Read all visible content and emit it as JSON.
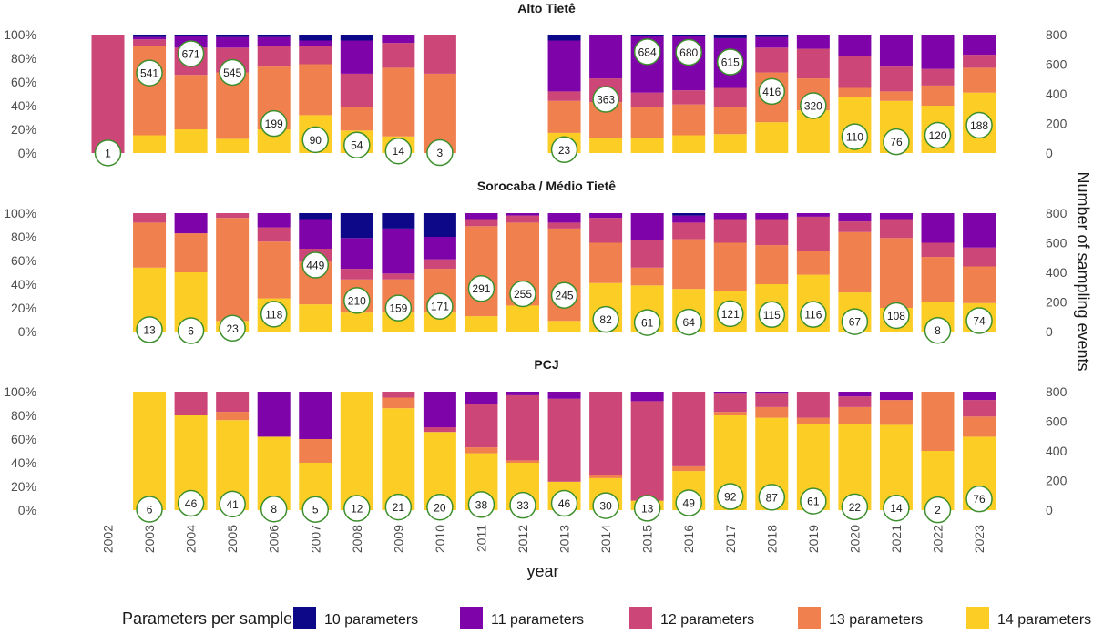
{
  "chart_data": {
    "type": "bar",
    "stacked": "percent",
    "x_label": "year",
    "y2_label": "Number of sampling events",
    "years": [
      "2002",
      "2003",
      "2004",
      "2005",
      "2006",
      "2007",
      "2008",
      "2009",
      "2010",
      "2011",
      "2012",
      "2013",
      "2014",
      "2015",
      "2016",
      "2017",
      "2018",
      "2019",
      "2020",
      "2021",
      "2022",
      "2023"
    ],
    "y_ticks": [
      "0%",
      "20%",
      "40%",
      "60%",
      "80%",
      "100%"
    ],
    "y2_ticks": [
      "0",
      "200",
      "400",
      "600",
      "800"
    ],
    "y2_range": [
      0,
      800
    ],
    "legend": {
      "title": "Parameters per sample",
      "placement": "bottom",
      "items": [
        {
          "key": "p10",
          "label": "10 parameters",
          "color": "#0d0887"
        },
        {
          "key": "p11",
          "label": "11 parameters",
          "color": "#7e03a8"
        },
        {
          "key": "p12",
          "label": "12 parameters",
          "color": "#cc4778"
        },
        {
          "key": "p13",
          "label": "13 parameters",
          "color": "#f0804e"
        },
        {
          "key": "p14",
          "label": "14 parameters",
          "color": "#fccd25"
        }
      ]
    },
    "count_circle_color": "#3d8f2d",
    "panels": [
      {
        "title": "Alto Tietê",
        "bars": [
          {
            "year": "2002",
            "count": 1,
            "p14": 0,
            "p13": 0,
            "p12": 100,
            "p11": 0,
            "p10": 0
          },
          {
            "year": "2003",
            "count": 541,
            "p14": 15,
            "p13": 75,
            "p12": 6,
            "p11": 2,
            "p10": 2
          },
          {
            "year": "2004",
            "count": 671,
            "p14": 20,
            "p13": 46,
            "p12": 23,
            "p11": 10,
            "p10": 1
          },
          {
            "year": "2005",
            "count": 545,
            "p14": 12,
            "p13": 56,
            "p12": 21,
            "p11": 9,
            "p10": 2
          },
          {
            "year": "2006",
            "count": 199,
            "p14": 20,
            "p13": 53,
            "p12": 17,
            "p11": 8,
            "p10": 2
          },
          {
            "year": "2007",
            "count": 90,
            "p14": 32,
            "p13": 43,
            "p12": 15,
            "p11": 5,
            "p10": 5
          },
          {
            "year": "2008",
            "count": 54,
            "p14": 19,
            "p13": 20,
            "p12": 28,
            "p11": 28,
            "p10": 5
          },
          {
            "year": "2009",
            "count": 14,
            "p14": 14,
            "p13": 58,
            "p12": 21,
            "p11": 7,
            "p10": 0
          },
          {
            "year": "2010",
            "count": 3,
            "p14": 0,
            "p13": 67,
            "p12": 33,
            "p11": 0,
            "p10": 0
          },
          {
            "year": "2013",
            "count": 23,
            "p14": 17,
            "p13": 27,
            "p12": 8,
            "p11": 43,
            "p10": 5
          },
          {
            "year": "2014",
            "count": 363,
            "p14": 13,
            "p13": 30,
            "p12": 20,
            "p11": 37,
            "p10": 0
          },
          {
            "year": "2015",
            "count": 684,
            "p14": 13,
            "p13": 26,
            "p12": 12,
            "p11": 48,
            "p10": 1
          },
          {
            "year": "2016",
            "count": 680,
            "p14": 15,
            "p13": 26,
            "p12": 12,
            "p11": 46,
            "p10": 1
          },
          {
            "year": "2017",
            "count": 615,
            "p14": 16,
            "p13": 23,
            "p12": 16,
            "p11": 42,
            "p10": 3
          },
          {
            "year": "2018",
            "count": 416,
            "p14": 26,
            "p13": 42,
            "p12": 21,
            "p11": 9,
            "p10": 2
          },
          {
            "year": "2019",
            "count": 320,
            "p14": 36,
            "p13": 27,
            "p12": 25,
            "p11": 12,
            "p10": 0
          },
          {
            "year": "2020",
            "count": 110,
            "p14": 47,
            "p13": 8,
            "p12": 27,
            "p11": 18,
            "p10": 0
          },
          {
            "year": "2021",
            "count": 76,
            "p14": 44,
            "p13": 8,
            "p12": 21,
            "p11": 27,
            "p10": 0
          },
          {
            "year": "2022",
            "count": 120,
            "p14": 40,
            "p13": 17,
            "p12": 14,
            "p11": 29,
            "p10": 0
          },
          {
            "year": "2023",
            "count": 188,
            "p14": 51,
            "p13": 21,
            "p12": 11,
            "p11": 17,
            "p10": 0
          }
        ]
      },
      {
        "title": "Sorocaba / Médio Tietê",
        "bars": [
          {
            "year": "2003",
            "count": 13,
            "p14": 54,
            "p13": 38,
            "p12": 8,
            "p11": 0,
            "p10": 0
          },
          {
            "year": "2004",
            "count": 6,
            "p14": 50,
            "p13": 33,
            "p12": 0,
            "p11": 17,
            "p10": 0
          },
          {
            "year": "2005",
            "count": 23,
            "p14": 9,
            "p13": 87,
            "p12": 4,
            "p11": 0,
            "p10": 0
          },
          {
            "year": "2006",
            "count": 118,
            "p14": 28,
            "p13": 48,
            "p12": 12,
            "p11": 12,
            "p10": 0
          },
          {
            "year": "2007",
            "count": 449,
            "p14": 23,
            "p13": 36,
            "p12": 11,
            "p11": 25,
            "p10": 5
          },
          {
            "year": "2008",
            "count": 210,
            "p14": 16,
            "p13": 28,
            "p12": 9,
            "p11": 26,
            "p10": 21
          },
          {
            "year": "2009",
            "count": 159,
            "p14": 16,
            "p13": 28,
            "p12": 5,
            "p11": 38,
            "p10": 13
          },
          {
            "year": "2010",
            "count": 171,
            "p14": 16,
            "p13": 37,
            "p12": 8,
            "p11": 19,
            "p10": 20
          },
          {
            "year": "2011",
            "count": 291,
            "p14": 13,
            "p13": 76,
            "p12": 6,
            "p11": 5,
            "p10": 0
          },
          {
            "year": "2012",
            "count": 255,
            "p14": 22,
            "p13": 70,
            "p12": 6,
            "p11": 2,
            "p10": 0
          },
          {
            "year": "2013",
            "count": 245,
            "p14": 9,
            "p13": 78,
            "p12": 5,
            "p11": 8,
            "p10": 0
          },
          {
            "year": "2014",
            "count": 82,
            "p14": 41,
            "p13": 34,
            "p12": 21,
            "p11": 4,
            "p10": 0
          },
          {
            "year": "2015",
            "count": 61,
            "p14": 39,
            "p13": 15,
            "p12": 23,
            "p11": 23,
            "p10": 0
          },
          {
            "year": "2016",
            "count": 64,
            "p14": 36,
            "p13": 42,
            "p12": 14,
            "p11": 6,
            "p10": 2
          },
          {
            "year": "2017",
            "count": 121,
            "p14": 34,
            "p13": 41,
            "p12": 20,
            "p11": 5,
            "p10": 0
          },
          {
            "year": "2018",
            "count": 115,
            "p14": 40,
            "p13": 33,
            "p12": 22,
            "p11": 5,
            "p10": 0
          },
          {
            "year": "2019",
            "count": 116,
            "p14": 48,
            "p13": 20,
            "p12": 29,
            "p11": 3,
            "p10": 0
          },
          {
            "year": "2020",
            "count": 67,
            "p14": 33,
            "p13": 51,
            "p12": 9,
            "p11": 7,
            "p10": 0
          },
          {
            "year": "2021",
            "count": 108,
            "p14": 20,
            "p13": 59,
            "p12": 16,
            "p11": 5,
            "p10": 0
          },
          {
            "year": "2022",
            "count": 8,
            "p14": 25,
            "p13": 38,
            "p12": 12,
            "p11": 25,
            "p10": 0
          },
          {
            "year": "2023",
            "count": 74,
            "p14": 24,
            "p13": 31,
            "p12": 16,
            "p11": 29,
            "p10": 0
          }
        ]
      },
      {
        "title": "PCJ",
        "bars": [
          {
            "year": "2003",
            "count": 6,
            "p14": 100,
            "p13": 0,
            "p12": 0,
            "p11": 0,
            "p10": 0
          },
          {
            "year": "2004",
            "count": 46,
            "p14": 80,
            "p13": 0,
            "p12": 20,
            "p11": 0,
            "p10": 0
          },
          {
            "year": "2005",
            "count": 41,
            "p14": 76,
            "p13": 7,
            "p12": 17,
            "p11": 0,
            "p10": 0
          },
          {
            "year": "2006",
            "count": 8,
            "p14": 62,
            "p13": 0,
            "p12": 0,
            "p11": 38,
            "p10": 0
          },
          {
            "year": "2007",
            "count": 5,
            "p14": 40,
            "p13": 20,
            "p12": 0,
            "p11": 40,
            "p10": 0
          },
          {
            "year": "2008",
            "count": 12,
            "p14": 100,
            "p13": 0,
            "p12": 0,
            "p11": 0,
            "p10": 0
          },
          {
            "year": "2009",
            "count": 21,
            "p14": 86,
            "p13": 9,
            "p12": 5,
            "p11": 0,
            "p10": 0
          },
          {
            "year": "2010",
            "count": 20,
            "p14": 66,
            "p13": 0,
            "p12": 4,
            "p11": 30,
            "p10": 0
          },
          {
            "year": "2011",
            "count": 38,
            "p14": 48,
            "p13": 5,
            "p12": 37,
            "p11": 10,
            "p10": 0
          },
          {
            "year": "2012",
            "count": 33,
            "p14": 40,
            "p13": 2,
            "p12": 55,
            "p11": 3,
            "p10": 0
          },
          {
            "year": "2013",
            "count": 46,
            "p14": 24,
            "p13": 0,
            "p12": 70,
            "p11": 6,
            "p10": 0
          },
          {
            "year": "2014",
            "count": 30,
            "p14": 27,
            "p13": 3,
            "p12": 70,
            "p11": 0,
            "p10": 0
          },
          {
            "year": "2015",
            "count": 13,
            "p14": 8,
            "p13": 0,
            "p12": 84,
            "p11": 8,
            "p10": 0
          },
          {
            "year": "2016",
            "count": 49,
            "p14": 33,
            "p13": 4,
            "p12": 63,
            "p11": 0,
            "p10": 0
          },
          {
            "year": "2017",
            "count": 92,
            "p14": 80,
            "p13": 3,
            "p12": 16,
            "p11": 1,
            "p10": 0
          },
          {
            "year": "2018",
            "count": 87,
            "p14": 78,
            "p13": 9,
            "p12": 12,
            "p11": 1,
            "p10": 0
          },
          {
            "year": "2019",
            "count": 61,
            "p14": 73,
            "p13": 5,
            "p12": 22,
            "p11": 0,
            "p10": 0
          },
          {
            "year": "2020",
            "count": 22,
            "p14": 73,
            "p13": 14,
            "p12": 9,
            "p11": 4,
            "p10": 0
          },
          {
            "year": "2021",
            "count": 14,
            "p14": 72,
            "p13": 21,
            "p12": 0,
            "p11": 7,
            "p10": 0
          },
          {
            "year": "2022",
            "count": 2,
            "p14": 50,
            "p13": 50,
            "p12": 0,
            "p11": 0,
            "p10": 0
          },
          {
            "year": "2023",
            "count": 76,
            "p14": 62,
            "p13": 17,
            "p12": 14,
            "p11": 7,
            "p10": 0
          }
        ]
      }
    ]
  }
}
